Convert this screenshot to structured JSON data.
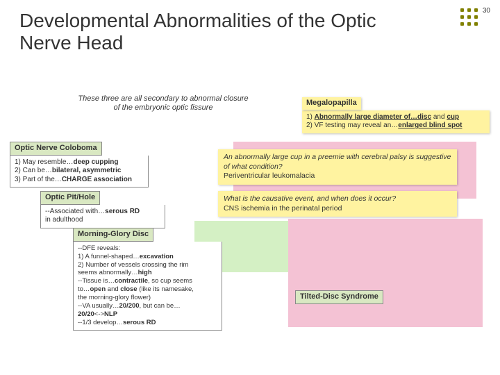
{
  "slideNumber": "30",
  "title": "Developmental Abnormalities of the Optic Nerve Head",
  "intro": "These three are all secondary to abnormal closure of the embryonic optic fissure",
  "megalo": {
    "header": "Megalopapilla",
    "line1a": "1) ",
    "line1b": "Abnormally large diameter of…disc",
    "line1c": " and ",
    "line1d": "cup",
    "line2a": "2) VF testing may reveal an…",
    "line2b": "enlarged blind spot"
  },
  "coloboma": {
    "header": "Optic Nerve Coloboma",
    "l1a": "1) May resemble…",
    "l1b": "deep cupping",
    "l2a": "2) Can be…",
    "l2b": "bilateral, asymmetric",
    "l3a": "3) Part of the…",
    "l3b": "CHARGE association"
  },
  "pit": {
    "header": "Optic Pit/Hole",
    "l1a": "--Associated with…",
    "l1b": "serous RD",
    "l2": "  in adulthood"
  },
  "mgd": {
    "header": "Morning-Glory Disc",
    "l1": "--DFE reveals:",
    "l2a": "   1) A funnel-shaped…",
    "l2b": "excavation",
    "l3": "   2) Number of vessels crossing the rim",
    "l3b": "       seems abnormally…",
    "l3c": "high",
    "l4a": "--Tissue is…",
    "l4b": "contractile",
    "l4c": ", so cup seems",
    "l5a": "   to…",
    "l5b": "open",
    "l5c": " and ",
    "l5d": "close",
    "l5e": " (like its namesake,",
    "l6": "   the morning-glory flower)",
    "l7a": "--VA usually…",
    "l7b": "20/200",
    "l7c": ", but can be…",
    "l8a": "   20/20",
    "l8b": "<->",
    "l8c": "NLP",
    "l9a": "--1/3 develop…",
    "l9b": "serous RD"
  },
  "tds": {
    "header": "Tilted-Disc Syndrome"
  },
  "yc1": {
    "q": "An abnormally large cup in a preemie with cerebral palsy is suggestive of what condition?",
    "a": "Periventricular leukomalacia"
  },
  "yc2": {
    "q": "What is the causative event, and when does it occur?",
    "a": "CNS ischemia in the perinatal period"
  },
  "colors": {
    "highlight": "#fff3a0",
    "greenHeader": "#d9e8c2",
    "pinkBg": "#f4c2d4",
    "greenBg": "#d4f0c4",
    "bullet": "#808000"
  }
}
